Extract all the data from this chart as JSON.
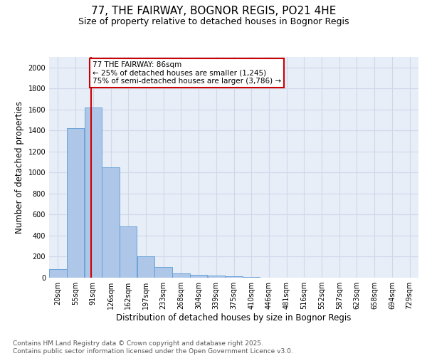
{
  "title1": "77, THE FAIRWAY, BOGNOR REGIS, PO21 4HE",
  "title2": "Size of property relative to detached houses in Bognor Regis",
  "xlabel": "Distribution of detached houses by size in Bognor Regis",
  "ylabel": "Number of detached properties",
  "bin_labels": [
    "20sqm",
    "55sqm",
    "91sqm",
    "126sqm",
    "162sqm",
    "197sqm",
    "233sqm",
    "268sqm",
    "304sqm",
    "339sqm",
    "375sqm",
    "410sqm",
    "446sqm",
    "481sqm",
    "516sqm",
    "552sqm",
    "587sqm",
    "623sqm",
    "658sqm",
    "694sqm",
    "729sqm"
  ],
  "bin_edges": [
    2.5,
    37.5,
    72.5,
    107.5,
    142.5,
    177.5,
    212.5,
    247.5,
    282.5,
    317.5,
    352.5,
    387.5,
    422.5,
    457.5,
    492.5,
    527.5,
    562.5,
    597.5,
    632.5,
    667.5,
    702.5,
    737.5
  ],
  "bar_values": [
    80,
    1420,
    1620,
    1050,
    490,
    205,
    105,
    40,
    30,
    20,
    15,
    5,
    2,
    1,
    1,
    0,
    0,
    0,
    0,
    0,
    0
  ],
  "bar_color": "#aec6e8",
  "bar_edge_color": "#5b9bd5",
  "grid_color": "#d0d8e8",
  "bg_color": "#e8eef8",
  "red_line_x": 86,
  "red_line_color": "#cc0000",
  "annotation_line1": "77 THE FAIRWAY: 86sqm",
  "annotation_line2": "← 25% of detached houses are smaller (1,245)",
  "annotation_line3": "75% of semi-detached houses are larger (3,786) →",
  "annotation_box_color": "#cc0000",
  "ylim": [
    0,
    2100
  ],
  "yticks": [
    0,
    200,
    400,
    600,
    800,
    1000,
    1200,
    1400,
    1600,
    1800,
    2000
  ],
  "footer1": "Contains HM Land Registry data © Crown copyright and database right 2025.",
  "footer2": "Contains public sector information licensed under the Open Government Licence v3.0.",
  "title_fontsize": 11,
  "subtitle_fontsize": 9,
  "tick_fontsize": 7,
  "label_fontsize": 8.5,
  "footer_fontsize": 6.5,
  "annot_fontsize": 7.5
}
